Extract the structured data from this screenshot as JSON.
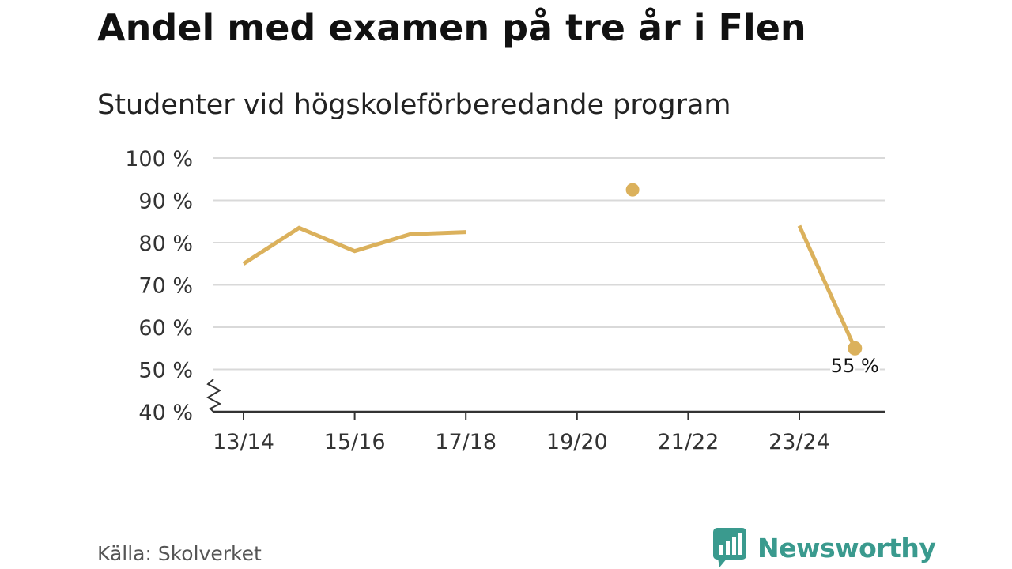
{
  "title": "Andel med examen på tre år i Flen",
  "subtitle": "Studenter vid högskoleförberedande program",
  "source": "Källa: Skolverket",
  "brand": {
    "name": "Newsworthy",
    "icon": "newsworthy-logo-icon",
    "color": "#3a9a8e"
  },
  "colors": {
    "series": "#dbb15c",
    "grid": "#d9d9d9",
    "axis": "#333333"
  },
  "chart_data": {
    "type": "line",
    "x": [
      "13/14",
      "14/15",
      "15/16",
      "16/17",
      "17/18",
      "18/19",
      "19/20",
      "20/21",
      "21/22",
      "22/23",
      "23/24",
      "24/25"
    ],
    "series": [
      {
        "values": [
          75,
          83.5,
          78,
          82,
          82.5,
          null,
          null,
          92.5,
          null,
          null,
          84,
          55
        ]
      }
    ],
    "xticks": [
      "13/14",
      "15/16",
      "17/18",
      "19/20",
      "21/22",
      "23/24"
    ],
    "yticks": [
      "40 %",
      "50 %",
      "60 %",
      "70 %",
      "80 %",
      "90 %",
      "100 %"
    ],
    "ylim": [
      40,
      100
    ],
    "y_axis_break": true,
    "grid": true,
    "annotations": [
      {
        "x": "24/25",
        "label": "55 %"
      }
    ]
  }
}
